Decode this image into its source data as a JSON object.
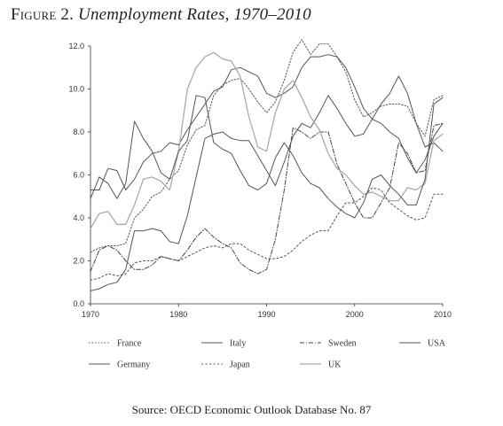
{
  "figure": {
    "label": "Figure 2.",
    "title": "Unemployment Rates, 1970–2010"
  },
  "source": {
    "prefix": "Source: ",
    "org": "OECD",
    "rest": " Economic Outlook Database No. 87"
  },
  "chart_data": {
    "type": "line",
    "title": "Unemployment Rates, 1970–2010",
    "xlabel": "",
    "ylabel": "",
    "xlim": [
      1970,
      2010
    ],
    "ylim": [
      0,
      12
    ],
    "x_ticks": [
      1970,
      1980,
      1990,
      2000,
      2010
    ],
    "y_ticks": [
      0,
      2,
      4,
      6,
      8,
      10,
      12
    ],
    "x_tick_labels": [
      "1970",
      "1980",
      "1990",
      "2000",
      "2010"
    ],
    "y_tick_labels": [
      "0.0",
      "2.0",
      "4.0",
      "6.0",
      "8.0",
      "10.0",
      "12.0"
    ],
    "grid": false,
    "legend_position": "bottom",
    "x": [
      1970,
      1971,
      1972,
      1973,
      1974,
      1975,
      1976,
      1977,
      1978,
      1979,
      1980,
      1981,
      1982,
      1983,
      1984,
      1985,
      1986,
      1987,
      1988,
      1989,
      1990,
      1991,
      1992,
      1993,
      1994,
      1995,
      1996,
      1997,
      1998,
      1999,
      2000,
      2001,
      2002,
      2003,
      2004,
      2005,
      2006,
      2007,
      2008,
      2009,
      2010
    ],
    "series": [
      {
        "name": "France",
        "color": "#555555",
        "dash": "1.5,2",
        "width": 1,
        "values": [
          2.4,
          2.6,
          2.7,
          2.7,
          2.8,
          4.0,
          4.4,
          5.0,
          5.2,
          5.8,
          6.2,
          7.4,
          8.1,
          8.3,
          9.7,
          10.2,
          10.4,
          10.5,
          10.0,
          9.4,
          8.9,
          9.4,
          10.4,
          11.7,
          12.3,
          11.6,
          12.1,
          12.1,
          11.5,
          10.8,
          9.5,
          8.7,
          8.9,
          9.2,
          9.3,
          9.3,
          9.2,
          8.4,
          7.8,
          9.5,
          9.7
        ]
      },
      {
        "name": "Germany",
        "color": "#555555",
        "dash": "",
        "width": 1,
        "values": [
          0.6,
          0.7,
          0.9,
          1.0,
          1.6,
          3.4,
          3.4,
          3.5,
          3.4,
          2.9,
          2.8,
          4.1,
          5.9,
          7.7,
          7.9,
          8.0,
          7.7,
          7.6,
          7.6,
          6.9,
          6.2,
          5.5,
          6.6,
          7.8,
          8.4,
          8.2,
          8.9,
          9.7,
          9.1,
          8.4,
          7.8,
          7.9,
          8.6,
          9.3,
          9.8,
          10.6,
          9.8,
          8.4,
          7.3,
          7.5,
          7.1
        ]
      },
      {
        "name": "Italy",
        "color": "#555555",
        "dash": "",
        "width": 1,
        "values": [
          5.3,
          5.3,
          6.3,
          6.2,
          5.3,
          5.8,
          6.6,
          7.0,
          7.1,
          7.5,
          7.4,
          8.1,
          8.7,
          9.3,
          9.9,
          10.1,
          10.9,
          11.0,
          10.8,
          10.6,
          9.8,
          9.6,
          9.8,
          10.1,
          11.0,
          11.5,
          11.5,
          11.6,
          11.5,
          11.0,
          10.1,
          9.1,
          8.6,
          8.4,
          8.0,
          7.7,
          6.8,
          6.1,
          6.7,
          7.8,
          8.4
        ]
      },
      {
        "name": "Japan",
        "color": "#555555",
        "dash": "2,2.5",
        "width": 1,
        "values": [
          1.1,
          1.2,
          1.4,
          1.3,
          1.4,
          1.9,
          2.0,
          2.0,
          2.2,
          2.1,
          2.0,
          2.2,
          2.4,
          2.6,
          2.7,
          2.6,
          2.8,
          2.8,
          2.5,
          2.3,
          2.1,
          2.1,
          2.2,
          2.5,
          2.9,
          3.2,
          3.4,
          3.4,
          4.1,
          4.7,
          4.7,
          5.0,
          5.4,
          5.3,
          4.7,
          4.4,
          4.1,
          3.9,
          4.0,
          5.1,
          5.1
        ]
      },
      {
        "name": "Sweden",
        "color": "#444444",
        "dash": "5,2,1,2",
        "width": 1,
        "values": [
          1.5,
          2.5,
          2.7,
          2.5,
          2.0,
          1.6,
          1.6,
          1.8,
          2.2,
          2.1,
          2.0,
          2.5,
          3.1,
          3.5,
          3.1,
          2.8,
          2.6,
          1.9,
          1.6,
          1.4,
          1.6,
          3.0,
          5.3,
          8.2,
          8.0,
          7.7,
          8.0,
          8.0,
          6.5,
          5.6,
          4.7,
          4.0,
          4.0,
          4.7,
          5.4,
          7.5,
          7.0,
          6.1,
          6.2,
          8.3,
          8.4
        ]
      },
      {
        "name": "UK",
        "color": "#aaaaaa",
        "dash": "",
        "width": 1.3,
        "values": [
          3.5,
          4.2,
          4.3,
          3.7,
          3.7,
          4.6,
          5.8,
          5.9,
          5.7,
          5.3,
          7.1,
          10.0,
          11.0,
          11.5,
          11.7,
          11.4,
          11.3,
          10.6,
          8.7,
          7.3,
          7.1,
          8.9,
          10.0,
          10.4,
          9.6,
          8.7,
          8.1,
          7.0,
          6.3,
          6.0,
          5.5,
          5.1,
          5.2,
          5.0,
          4.8,
          4.8,
          5.4,
          5.3,
          5.6,
          7.6,
          7.9
        ]
      },
      {
        "name": "USA",
        "color": "#555555",
        "dash": "",
        "width": 1,
        "values": [
          4.9,
          5.9,
          5.6,
          4.9,
          5.6,
          8.5,
          7.7,
          7.1,
          6.1,
          5.8,
          7.1,
          7.6,
          9.7,
          9.6,
          7.5,
          7.2,
          7.0,
          6.2,
          5.5,
          5.3,
          5.6,
          6.8,
          7.5,
          6.9,
          6.1,
          5.6,
          5.4,
          4.9,
          4.5,
          4.2,
          4.0,
          4.7,
          5.8,
          6.0,
          5.5,
          5.1,
          4.6,
          4.6,
          5.8,
          9.3,
          9.6
        ]
      }
    ]
  }
}
